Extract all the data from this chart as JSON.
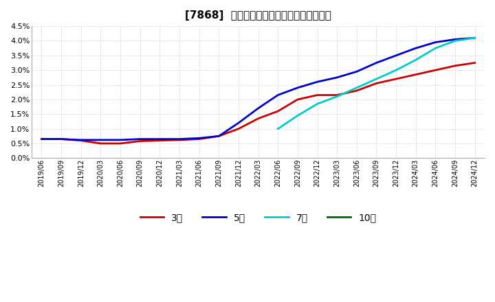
{
  "title": "[7868]  経常利益マージンの標準偏差の推移",
  "ylim": [
    0.0,
    0.045
  ],
  "yticks": [
    0.0,
    0.005,
    0.01,
    0.015,
    0.02,
    0.025,
    0.03,
    0.035,
    0.04,
    0.045
  ],
  "ytick_labels": [
    "0.0%",
    "0.5%",
    "1.0%",
    "1.5%",
    "2.0%",
    "2.5%",
    "3.0%",
    "3.5%",
    "4.0%",
    "4.5%"
  ],
  "x_labels": [
    "2019/06",
    "2019/09",
    "2019/12",
    "2020/03",
    "2020/06",
    "2020/09",
    "2020/12",
    "2021/03",
    "2021/06",
    "2021/09",
    "2021/12",
    "2022/03",
    "2022/06",
    "2022/09",
    "2022/12",
    "2023/03",
    "2023/06",
    "2023/09",
    "2023/12",
    "2024/03",
    "2024/06",
    "2024/09",
    "2024/12"
  ],
  "line_3yr": {
    "color": "#cc0000",
    "label": "3年",
    "values": [
      0.0065,
      0.0065,
      0.006,
      0.005,
      0.005,
      0.0058,
      0.006,
      0.0062,
      0.0065,
      0.0075,
      0.01,
      0.0135,
      0.016,
      0.02,
      0.0215,
      0.0215,
      0.023,
      0.0255,
      0.027,
      0.0285,
      0.03,
      0.0315,
      0.0325
    ]
  },
  "line_5yr": {
    "color": "#0000cc",
    "label": "5年",
    "values": [
      0.0065,
      0.0065,
      0.0062,
      0.0062,
      0.0062,
      0.0065,
      0.0065,
      0.0065,
      0.0068,
      0.0075,
      0.012,
      0.017,
      0.0215,
      0.024,
      0.026,
      0.0275,
      0.0295,
      0.0325,
      0.035,
      0.0375,
      0.0395,
      0.0405,
      0.041
    ]
  },
  "line_7yr": {
    "color": "#00cccc",
    "label": "7年",
    "values": [
      null,
      null,
      null,
      null,
      null,
      null,
      null,
      null,
      null,
      null,
      null,
      null,
      0.01,
      0.0145,
      0.0185,
      0.021,
      0.024,
      0.027,
      0.03,
      0.0335,
      0.0375,
      0.04,
      0.041
    ]
  },
  "line_10yr": {
    "color": "#006600",
    "label": "10年",
    "values": [
      null,
      null,
      null,
      null,
      null,
      null,
      null,
      null,
      null,
      null,
      null,
      null,
      null,
      null,
      null,
      null,
      null,
      null,
      null,
      null,
      null,
      null,
      null
    ]
  },
  "bg_color": "#ffffff",
  "grid_color": "#bbbbbb",
  "title_fontsize": 11,
  "legend_labels": [
    "3年",
    "5年",
    "7年",
    "10年"
  ]
}
